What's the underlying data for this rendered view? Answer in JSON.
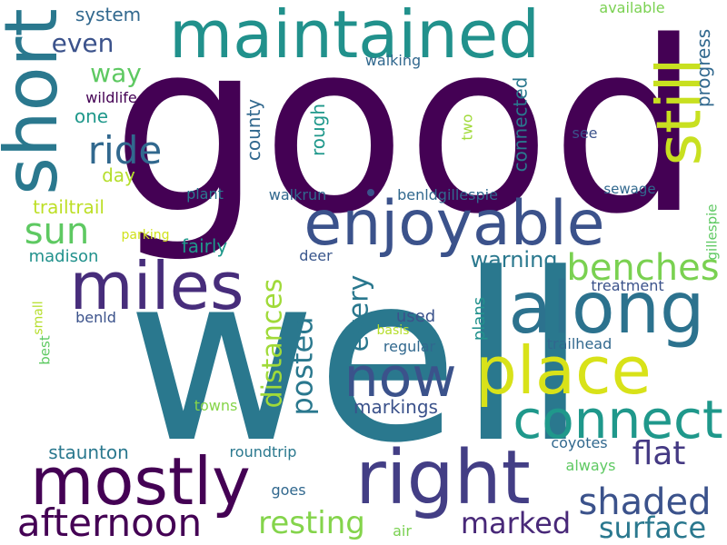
{
  "words": [
    {
      "text": "good",
      "color": "#440154",
      "rotate": false
    },
    {
      "text": "well",
      "color": "#2a788e",
      "rotate": false
    },
    {
      "text": "maintained",
      "color": "#21918c",
      "rotate": false
    },
    {
      "text": "short",
      "color": "#2a788e",
      "rotate": true
    },
    {
      "text": "still",
      "color": "#c8e020",
      "rotate": true
    },
    {
      "text": "enjoyable",
      "color": "#3b528b",
      "rotate": false
    },
    {
      "text": "miles",
      "color": "#472d7b",
      "rotate": false
    },
    {
      "text": "along",
      "color": "#2c728e",
      "rotate": false
    },
    {
      "text": "place",
      "color": "#d8e219",
      "rotate": false
    },
    {
      "text": "mostly",
      "color": "#440154",
      "rotate": false
    },
    {
      "text": "right",
      "color": "#433e85",
      "rotate": false
    },
    {
      "text": "connect",
      "color": "#1f988b",
      "rotate": false
    },
    {
      "text": "now",
      "color": "#3b528b",
      "rotate": false
    },
    {
      "text": "ride",
      "color": "#31688e",
      "rotate": false
    },
    {
      "text": "benches",
      "color": "#7ad151",
      "rotate": false
    },
    {
      "text": "afternoon",
      "color": "#440154",
      "rotate": false
    },
    {
      "text": "shaded",
      "color": "#3b528b",
      "rotate": false
    },
    {
      "text": "flat",
      "color": "#443983",
      "rotate": false
    },
    {
      "text": "sun",
      "color": "#5ec962",
      "rotate": false
    },
    {
      "text": "resting",
      "color": "#84d44b",
      "rotate": false
    },
    {
      "text": "marked",
      "color": "#482878",
      "rotate": false
    },
    {
      "text": "surface",
      "color": "#2a788e",
      "rotate": false
    },
    {
      "text": "distances",
      "color": "#a0da39",
      "rotate": true
    },
    {
      "text": "posted",
      "color": "#2a788e",
      "rotate": true
    },
    {
      "text": "every",
      "color": "#2a788e",
      "rotate": true
    },
    {
      "text": "even",
      "color": "#3b528b",
      "rotate": false
    },
    {
      "text": "way",
      "color": "#5ec962",
      "rotate": false
    },
    {
      "text": "system",
      "color": "#31688e",
      "rotate": false
    },
    {
      "text": "one",
      "color": "#1f988b",
      "rotate": false
    },
    {
      "text": "wildlife",
      "color": "#440154",
      "rotate": false
    },
    {
      "text": "day",
      "color": "#b5de2b",
      "rotate": false
    },
    {
      "text": "trailtrail",
      "color": "#bddf26",
      "rotate": false
    },
    {
      "text": "madison",
      "color": "#21918c",
      "rotate": false
    },
    {
      "text": "fairly",
      "color": "#1f988b",
      "rotate": false
    },
    {
      "text": "parking",
      "color": "#d0e11c",
      "rotate": false
    },
    {
      "text": "county",
      "color": "#31688e",
      "rotate": true
    },
    {
      "text": "rough",
      "color": "#1f988b",
      "rotate": true
    },
    {
      "text": "connected",
      "color": "#2a788e",
      "rotate": true
    },
    {
      "text": "progress",
      "color": "#31688e",
      "rotate": true
    },
    {
      "text": "walking",
      "color": "#31688e",
      "rotate": false
    },
    {
      "text": "available",
      "color": "#7ad151",
      "rotate": false
    },
    {
      "text": "two",
      "color": "#a0da39",
      "rotate": true
    },
    {
      "text": "see",
      "color": "#3b528b",
      "rotate": false
    },
    {
      "text": "plant",
      "color": "#2a788e",
      "rotate": false
    },
    {
      "text": "walkrun",
      "color": "#31688e",
      "rotate": false
    },
    {
      "text": "benldgillespie",
      "color": "#31688e",
      "rotate": false
    },
    {
      "text": "sewage",
      "color": "#31688e",
      "rotate": false
    },
    {
      "text": "gillespie",
      "color": "#5ec962",
      "rotate": true
    },
    {
      "text": "deer",
      "color": "#39568c",
      "rotate": false
    },
    {
      "text": "warning",
      "color": "#2a788e",
      "rotate": false
    },
    {
      "text": "treatment",
      "color": "#3b528b",
      "rotate": false
    },
    {
      "text": "small",
      "color": "#b5de2b",
      "rotate": true
    },
    {
      "text": "benld",
      "color": "#3b528b",
      "rotate": false
    },
    {
      "text": "used",
      "color": "#3b528b",
      "rotate": false
    },
    {
      "text": "plans",
      "color": "#21918c",
      "rotate": true
    },
    {
      "text": "basis",
      "color": "#b5de2b",
      "rotate": false
    },
    {
      "text": "regular",
      "color": "#31688e",
      "rotate": false
    },
    {
      "text": "trailhead",
      "color": "#31688e",
      "rotate": false
    },
    {
      "text": "best",
      "color": "#5ec962",
      "rotate": true
    },
    {
      "text": "markings",
      "color": "#3b528b",
      "rotate": false
    },
    {
      "text": "towns",
      "color": "#86d549",
      "rotate": false
    },
    {
      "text": "staunton",
      "color": "#2a788e",
      "rotate": false
    },
    {
      "text": "roundtrip",
      "color": "#2a788e",
      "rotate": false
    },
    {
      "text": "coyotes",
      "color": "#31688e",
      "rotate": false
    },
    {
      "text": "always",
      "color": "#5ec962",
      "rotate": false
    },
    {
      "text": "goes",
      "color": "#31688e",
      "rotate": false
    },
    {
      "text": "air",
      "color": "#7ad151",
      "rotate": false
    }
  ],
  "dot": {
    "color": "#3b528b"
  }
}
